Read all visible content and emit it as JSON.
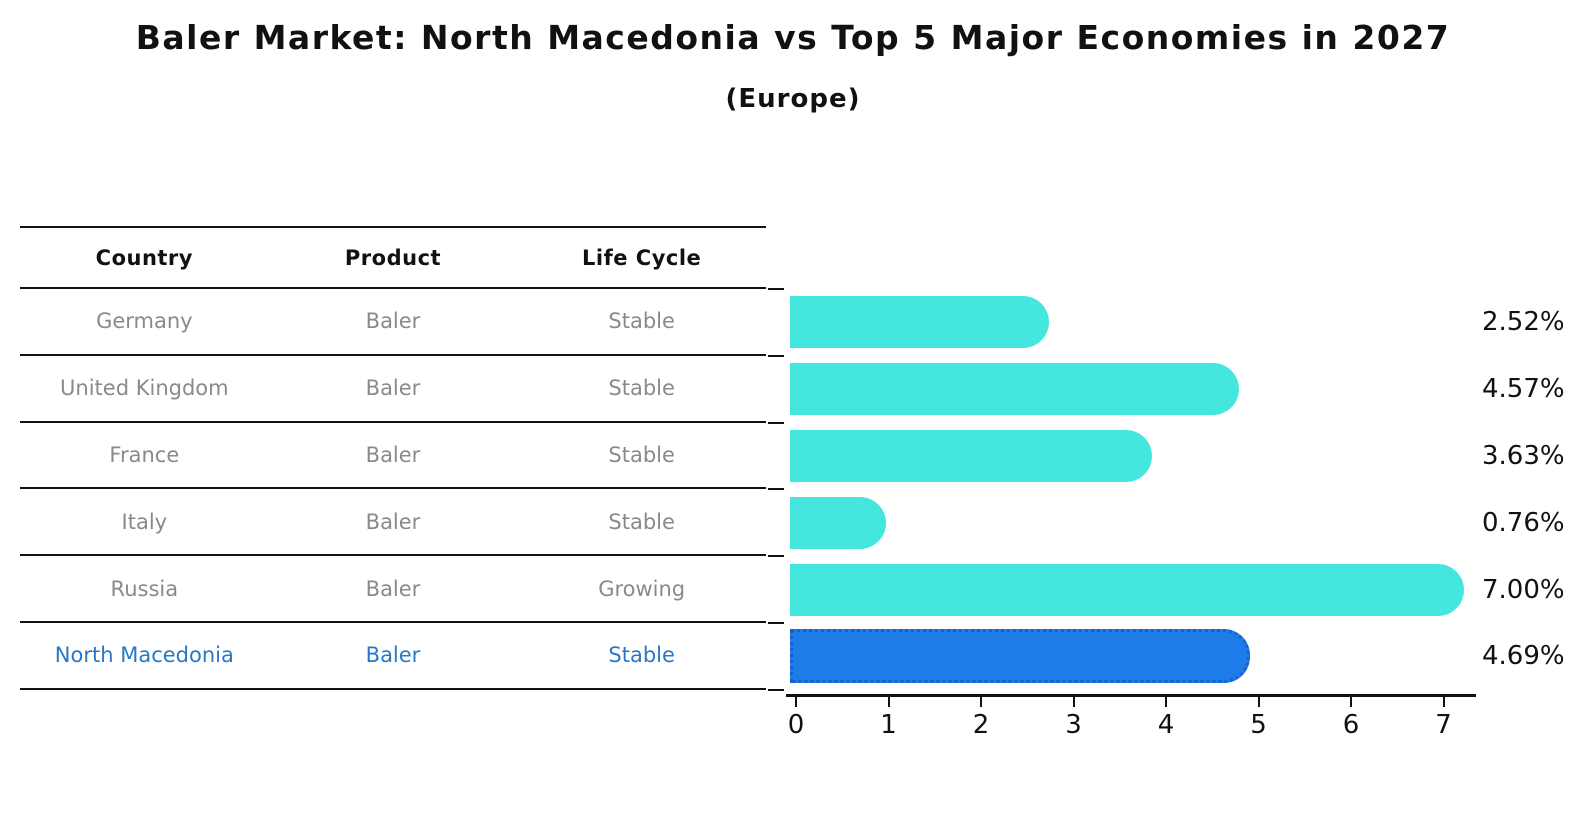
{
  "header": {
    "title": "Baler Market: North Macedonia vs Top 5 Major Economies in 2027",
    "subtitle": "(Europe)"
  },
  "table": {
    "headers": [
      "Country",
      "Product",
      "Life Cycle"
    ],
    "rows": [
      {
        "country": "Germany",
        "product": "Baler",
        "life_cycle": "Stable",
        "highlighted": false
      },
      {
        "country": "United Kingdom",
        "product": "Baler",
        "life_cycle": "Stable",
        "highlighted": false
      },
      {
        "country": "France",
        "product": "Baler",
        "life_cycle": "Stable",
        "highlighted": false
      },
      {
        "country": "Italy",
        "product": "Baler",
        "life_cycle": "Stable",
        "highlighted": false
      },
      {
        "country": "Russia",
        "product": "Baler",
        "life_cycle": "Growing",
        "highlighted": false
      },
      {
        "country": "North Macedonia",
        "product": "Baler",
        "life_cycle": "Stable",
        "highlighted": true
      }
    ]
  },
  "chart_data": {
    "type": "bar",
    "orientation": "horizontal",
    "title": "Baler Market: North Macedonia vs Top 5 Major Economies in 2027 (Europe)",
    "categories": [
      "Germany",
      "United Kingdom",
      "France",
      "Italy",
      "Russia",
      "North Macedonia"
    ],
    "values": [
      2.52,
      4.57,
      3.63,
      0.76,
      7.0,
      4.69
    ],
    "value_labels": [
      "2.52%",
      "4.57%",
      "3.63%",
      "0.76%",
      "7.00%",
      "4.69%"
    ],
    "x_ticks": [
      "0",
      "1",
      "2",
      "3",
      "4",
      "5",
      "6",
      "7"
    ],
    "xlim": [
      0,
      7.4
    ],
    "grid": false,
    "legend": false,
    "highlight_index": 5,
    "bar_color": "#45E6DD",
    "highlight_bar_color": "#1E7CE8",
    "highlight_border_color": "#1A5FD0",
    "highlight_text_color": "#2878C8",
    "table_text_color": "#8a8a8a"
  }
}
